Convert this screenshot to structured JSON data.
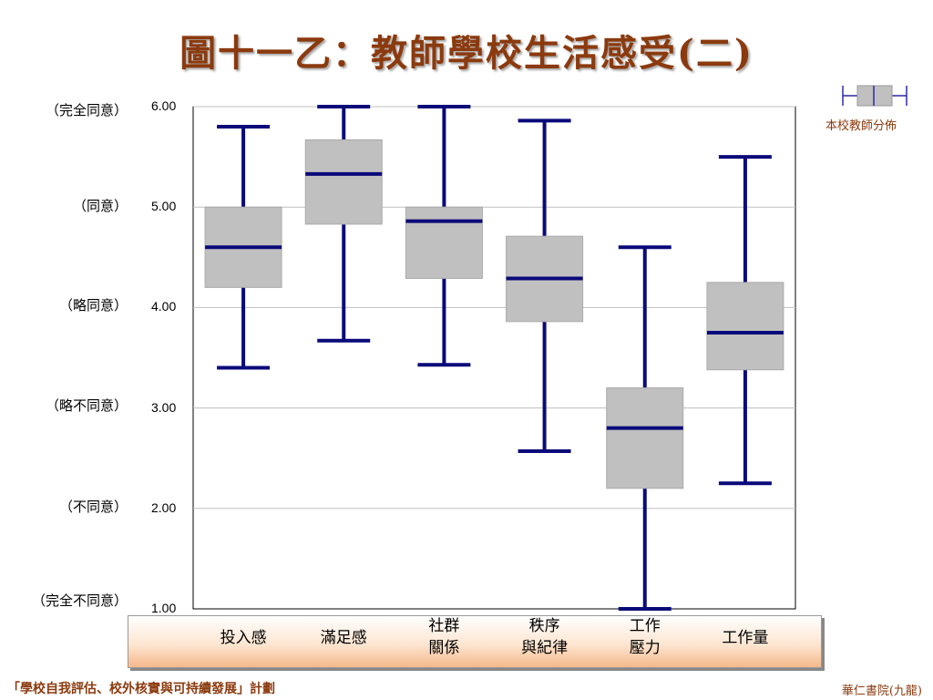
{
  "title": "圖十一乙：教師學校生活感受(二)",
  "level_labels": [
    "（完全同意）",
    "（同意）",
    "（略同意）",
    "（略不同意）",
    "（不同意）",
    "（完全不同意）"
  ],
  "legend": {
    "label": "本校教師分佈"
  },
  "colors": {
    "box": "#c0c0c0",
    "whisker": "#0a0a7a",
    "grid": "#c0c0c0",
    "title": "#8B3A0E"
  },
  "categories": [
    {
      "line1": "投入感",
      "line2": ""
    },
    {
      "line1": "滿足感",
      "line2": ""
    },
    {
      "line1": "社群",
      "line2": "關係"
    },
    {
      "line1": "秩序",
      "line2": "與紀律"
    },
    {
      "line1": "工作",
      "line2": "壓力"
    },
    {
      "line1": "工作量",
      "line2": ""
    }
  ],
  "footer": {
    "left": "「學校自我評估、校外核實與可持續發展」計劃",
    "right": "華仁書院(九龍)"
  },
  "chart_data": {
    "type": "boxplot",
    "title": "圖十一乙：教師學校生活感受(二)",
    "ylim": [
      1,
      6
    ],
    "yticks": [
      "1.00",
      "2.00",
      "3.00",
      "4.00",
      "5.00",
      "6.00"
    ],
    "grid": true,
    "legend_position": "top-right",
    "series": [
      {
        "category": "投入感",
        "min": 3.4,
        "q1": 4.2,
        "median": 4.6,
        "q3": 5.0,
        "max": 5.8
      },
      {
        "category": "滿足感",
        "min": 3.67,
        "q1": 4.83,
        "median": 5.33,
        "q3": 5.67,
        "max": 6.0
      },
      {
        "category": "社群關係",
        "min": 3.43,
        "q1": 4.29,
        "median": 4.86,
        "q3": 5.0,
        "max": 6.0
      },
      {
        "category": "秩序與紀律",
        "min": 2.57,
        "q1": 3.86,
        "median": 4.29,
        "q3": 4.71,
        "max": 5.86
      },
      {
        "category": "工作壓力",
        "min": 1.0,
        "q1": 2.2,
        "median": 2.8,
        "q3": 3.2,
        "max": 4.6
      },
      {
        "category": "工作量",
        "min": 2.25,
        "q1": 3.38,
        "median": 3.75,
        "q3": 4.25,
        "max": 5.5
      }
    ]
  }
}
